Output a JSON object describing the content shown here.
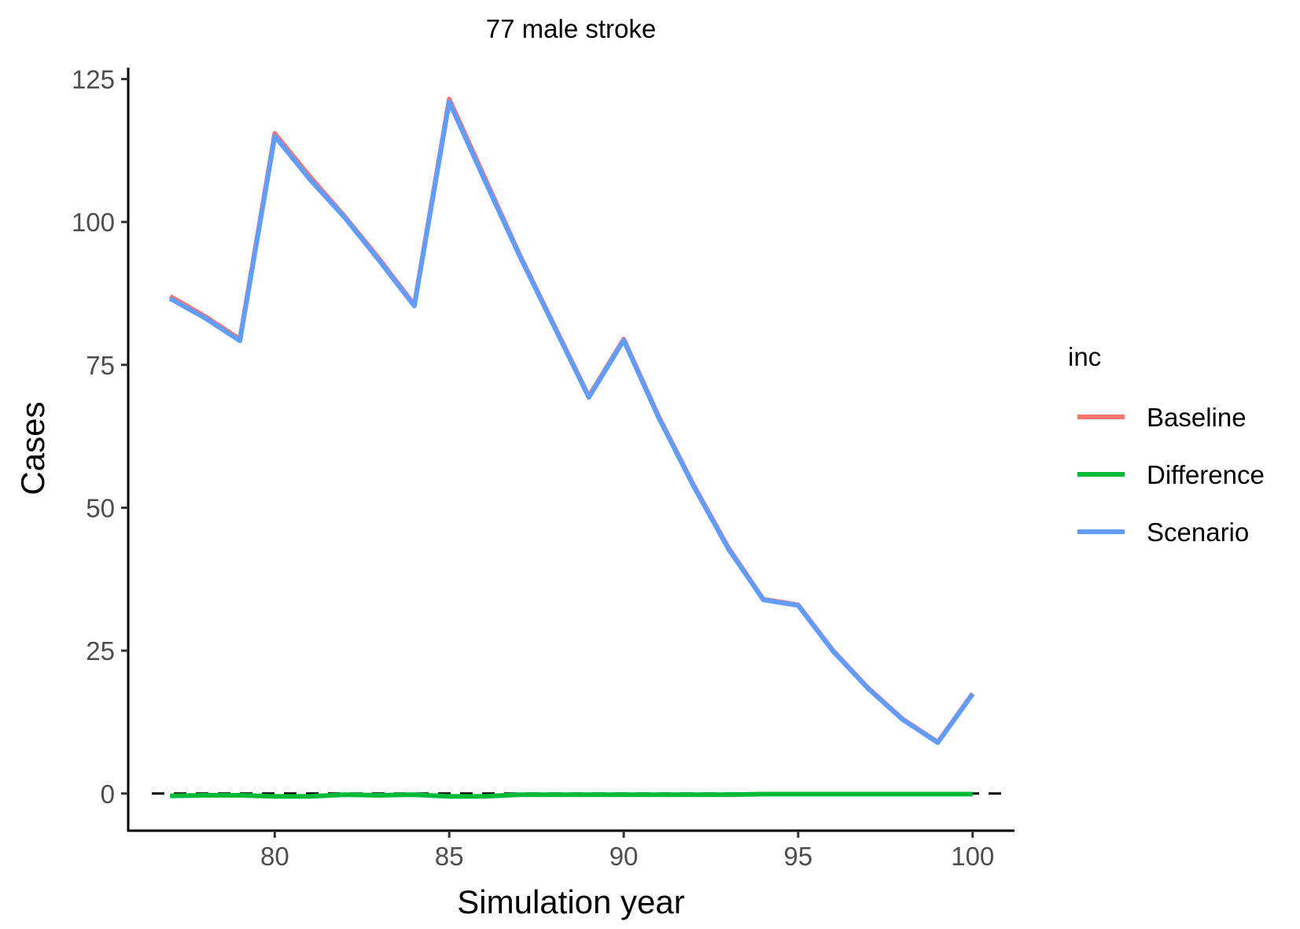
{
  "chart_data": {
    "type": "line",
    "title": "77 male stroke",
    "xlabel": "Simulation year",
    "ylabel": "Cases",
    "xlim": [
      75.8,
      101.2
    ],
    "ylim": [
      -6.5,
      127
    ],
    "x_ticks": [
      80,
      85,
      90,
      95,
      100
    ],
    "y_ticks": [
      0,
      25,
      50,
      75,
      100,
      125
    ],
    "grid": false,
    "reference_line": {
      "y": 0,
      "style": "dashed",
      "color": "#000000"
    },
    "legend": {
      "title": "inc",
      "position": "right"
    },
    "x": [
      77,
      78,
      79,
      80,
      81,
      82,
      83,
      84,
      85,
      86,
      87,
      88,
      89,
      90,
      91,
      92,
      93,
      94,
      95,
      96,
      97,
      98,
      99,
      100
    ],
    "series": [
      {
        "name": "Baseline",
        "color": "#F8766D",
        "values": [
          87,
          83.5,
          79.5,
          115.5,
          108,
          101,
          93.5,
          85.5,
          121.5,
          108,
          94.5,
          82,
          69.5,
          79.5,
          66,
          54,
          43,
          34,
          33,
          25,
          18.5,
          13,
          9,
          17.5
        ]
      },
      {
        "name": "Difference",
        "color": "#00BA38",
        "values": [
          -0.4,
          -0.3,
          -0.3,
          -0.5,
          -0.5,
          -0.2,
          -0.3,
          -0.2,
          -0.5,
          -0.5,
          -0.2,
          -0.2,
          -0.2,
          -0.2,
          -0.2,
          -0.2,
          -0.2,
          -0.1,
          -0.1,
          -0.1,
          -0.1,
          -0.1,
          -0.1,
          -0.1
        ]
      },
      {
        "name": "Scenario",
        "color": "#619CFF",
        "values": [
          86.6,
          83.2,
          79.2,
          115,
          107.5,
          100.8,
          93.2,
          85.3,
          121,
          107.5,
          94.3,
          81.8,
          69.3,
          79.3,
          65.8,
          53.8,
          42.8,
          33.9,
          32.9,
          24.9,
          18.4,
          12.9,
          8.9,
          17.4
        ]
      }
    ]
  }
}
